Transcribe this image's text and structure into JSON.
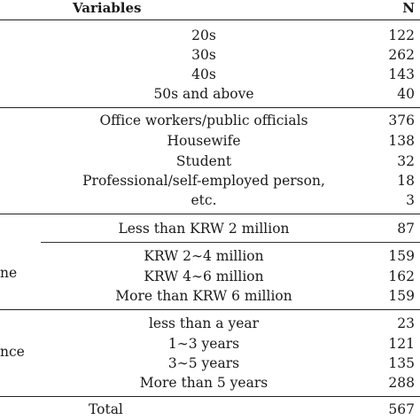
{
  "header": {
    "variables_label": "Variables",
    "n_label": "N"
  },
  "groups": [
    {
      "category": "",
      "rows": [
        {
          "label": "20s",
          "n": "122"
        },
        {
          "label": "30s",
          "n": "262"
        },
        {
          "label": "40s",
          "n": "143"
        },
        {
          "label": "50s and above",
          "n": "40"
        }
      ]
    },
    {
      "category": "",
      "rows": [
        {
          "label": "Office workers/public officials",
          "n": "376"
        },
        {
          "label": "Housewife",
          "n": "138"
        },
        {
          "label": "Student",
          "n": "32"
        },
        {
          "label": "Professional/self-employed person,",
          "n": "18"
        },
        {
          "label": "etc.",
          "n": "3"
        }
      ]
    },
    {
      "category": "ne",
      "rows": [
        {
          "label": "Less than KRW 2 million",
          "n": "87"
        },
        {
          "label": "KRW 2∼4 million",
          "n": "159"
        },
        {
          "label": "KRW 4∼6 million",
          "n": "162"
        },
        {
          "label": "More than KRW 6 million",
          "n": "159"
        }
      ]
    },
    {
      "category": "nce",
      "rows": [
        {
          "label": "less than a year",
          "n": "23"
        },
        {
          "label": "1∼3 years",
          "n": "121"
        },
        {
          "label": "3∼5 years",
          "n": "135"
        },
        {
          "label": "More than 5 years",
          "n": "288"
        }
      ]
    }
  ],
  "total": {
    "label": "Total",
    "n": "567"
  }
}
